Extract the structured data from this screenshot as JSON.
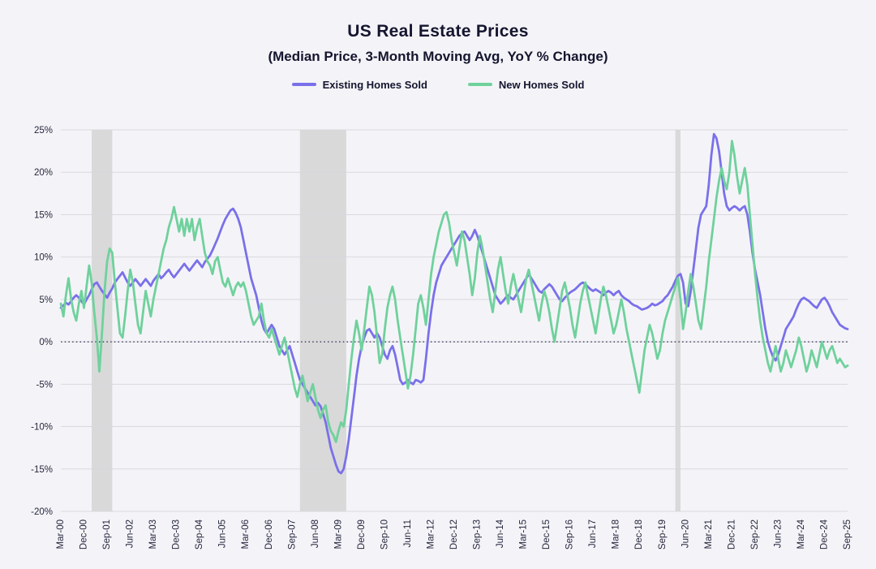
{
  "title": "US Real Estate Prices",
  "subtitle": "(Median Price, 3-Month Moving Avg, YoY % Change)",
  "legend": [
    {
      "label": "Existing Homes Sold",
      "color": "#7a70ea"
    },
    {
      "label": "New Homes Sold",
      "color": "#6fd19c"
    }
  ],
  "colors": {
    "background": "#f4f4f8",
    "grid": "#d8d8de",
    "text": "#26263e",
    "zero_line": "#23234a",
    "recession_band": "#d9d9d9"
  },
  "chart_data": {
    "type": "line",
    "title": "US Real Estate Prices",
    "subtitle": "(Median Price, 3-Month Moving Avg, YoY % Change)",
    "x_monthly_from": "Mar-00",
    "x_monthly_to": "Sep-25",
    "x_tick_interval_months": 9,
    "x_tick_labels": [
      "Mar-00",
      "Dec-00",
      "Sep-01",
      "Jun-02",
      "Mar-03",
      "Dec-03",
      "Sep-04",
      "Jun-05",
      "Mar-06",
      "Dec-06",
      "Sep-07",
      "Jun-08",
      "Mar-09",
      "Dec-09",
      "Sep-10",
      "Jun-11",
      "Mar-12",
      "Dec-12",
      "Sep-13",
      "Jun-14",
      "Mar-15",
      "Dec-15",
      "Sep-16",
      "Jun-17",
      "Mar-18",
      "Dec-18",
      "Sep-19",
      "Jun-20",
      "Mar-21",
      "Dec-21",
      "Sep-22",
      "Jun-23",
      "Mar-24",
      "Dec-24",
      "Sep-25"
    ],
    "ylim": [
      -20,
      25
    ],
    "y_ticks": [
      25,
      20,
      15,
      10,
      5,
      0,
      -5,
      -10,
      -15,
      -20
    ],
    "y_tick_format": "percent",
    "grid": "horizontal",
    "zero_line_style": "dotted",
    "legend_position": "top",
    "recession_bands": [
      {
        "from": "Mar-01",
        "to": "Nov-01"
      },
      {
        "from": "Dec-07",
        "to": "Jun-09"
      },
      {
        "from": "Feb-20",
        "to": "Apr-20"
      }
    ],
    "series": [
      {
        "name": "Existing Homes Sold",
        "color": "#7a70ea",
        "values": [
          4.0,
          4.3,
          4.6,
          4.4,
          4.8,
          5.2,
          5.5,
          5.2,
          4.8,
          4.4,
          5.0,
          5.5,
          6.2,
          6.8,
          7.0,
          6.5,
          6.0,
          5.6,
          5.2,
          5.8,
          6.3,
          7.0,
          7.4,
          7.8,
          8.2,
          7.6,
          7.0,
          6.6,
          7.0,
          7.4,
          7.0,
          6.6,
          7.0,
          7.4,
          7.0,
          6.6,
          7.2,
          7.6,
          8.0,
          7.5,
          7.8,
          8.2,
          8.5,
          8.0,
          7.6,
          8.0,
          8.4,
          8.8,
          9.2,
          8.8,
          8.4,
          8.8,
          9.2,
          9.6,
          9.2,
          8.8,
          9.4,
          9.8,
          10.2,
          10.8,
          11.5,
          12.2,
          13.0,
          13.8,
          14.5,
          15.0,
          15.5,
          15.7,
          15.2,
          14.5,
          13.5,
          12.0,
          10.5,
          9.0,
          7.5,
          6.5,
          5.5,
          4.0,
          2.5,
          1.5,
          1.0,
          1.5,
          2.0,
          1.5,
          0.5,
          -0.5,
          -1.0,
          -1.5,
          -1.0,
          -0.5,
          -1.5,
          -2.5,
          -3.5,
          -4.5,
          -5.0,
          -5.5,
          -6.0,
          -6.5,
          -7.0,
          -7.5,
          -7.2,
          -7.6,
          -8.5,
          -9.5,
          -11.0,
          -12.5,
          -13.5,
          -14.5,
          -15.3,
          -15.5,
          -15.0,
          -13.5,
          -11.5,
          -9.0,
          -6.5,
          -4.0,
          -2.0,
          -0.5,
          0.5,
          1.3,
          1.5,
          1.0,
          0.5,
          1.0,
          0.5,
          -0.5,
          -1.5,
          -2.0,
          -1.0,
          -0.5,
          -1.5,
          -3.0,
          -4.5,
          -5.0,
          -4.8,
          -4.5,
          -4.8,
          -5.0,
          -4.5,
          -4.6,
          -4.8,
          -4.5,
          -2.0,
          1.0,
          3.5,
          5.5,
          7.0,
          8.0,
          9.0,
          9.5,
          10.0,
          10.5,
          11.0,
          11.5,
          12.0,
          12.5,
          12.8,
          13.0,
          12.5,
          12.0,
          12.5,
          13.2,
          12.5,
          11.5,
          10.5,
          9.5,
          8.5,
          7.5,
          6.5,
          5.5,
          5.0,
          4.5,
          4.8,
          5.2,
          5.5,
          5.2,
          5.0,
          5.5,
          6.0,
          6.5,
          7.0,
          7.5,
          8.0,
          7.5,
          7.0,
          6.5,
          6.0,
          5.8,
          6.2,
          6.5,
          6.8,
          6.5,
          6.0,
          5.5,
          5.0,
          4.8,
          5.2,
          5.5,
          5.8,
          6.0,
          6.2,
          6.5,
          6.8,
          7.0,
          6.8,
          6.5,
          6.2,
          6.0,
          6.2,
          6.0,
          5.8,
          5.5,
          5.8,
          6.0,
          5.8,
          5.5,
          5.8,
          6.0,
          5.5,
          5.2,
          5.0,
          4.8,
          4.5,
          4.3,
          4.2,
          4.0,
          3.8,
          3.9,
          4.0,
          4.2,
          4.5,
          4.3,
          4.4,
          4.6,
          4.8,
          5.2,
          5.5,
          6.0,
          6.5,
          7.2,
          7.8,
          8.0,
          7.0,
          4.5,
          4.2,
          6.0,
          8.5,
          11.0,
          13.5,
          15.0,
          15.5,
          16.0,
          18.5,
          22.0,
          24.5,
          24.0,
          22.5,
          20.0,
          17.5,
          16.0,
          15.5,
          15.8,
          16.0,
          15.8,
          15.5,
          15.8,
          16.0,
          15.0,
          13.0,
          10.5,
          8.5,
          7.0,
          5.5,
          3.5,
          1.5,
          0.0,
          -1.0,
          -1.8,
          -2.2,
          -1.5,
          -0.5,
          0.5,
          1.5,
          2.0,
          2.5,
          3.0,
          3.8,
          4.5,
          5.0,
          5.2,
          5.0,
          4.8,
          4.5,
          4.2,
          4.0,
          4.5,
          5.0,
          5.2,
          4.8,
          4.2,
          3.5,
          3.0,
          2.5,
          2.0,
          1.8,
          1.6,
          1.5
        ]
      },
      {
        "name": "New Homes Sold",
        "color": "#6fd19c",
        "values": [
          4.5,
          3.0,
          5.5,
          7.5,
          5.0,
          3.5,
          2.5,
          4.5,
          6.0,
          4.0,
          6.5,
          9.0,
          7.0,
          3.5,
          0.5,
          -3.5,
          1.0,
          6.0,
          9.5,
          11.0,
          10.5,
          7.0,
          4.0,
          1.0,
          0.5,
          3.0,
          6.0,
          8.5,
          7.0,
          4.5,
          2.0,
          1.0,
          3.5,
          6.0,
          4.5,
          3.0,
          5.0,
          6.5,
          8.0,
          9.5,
          11.0,
          12.0,
          13.5,
          14.5,
          15.9,
          14.5,
          13.0,
          14.5,
          12.5,
          14.5,
          13.0,
          14.5,
          12.0,
          13.5,
          14.5,
          12.5,
          10.5,
          9.5,
          9.0,
          8.0,
          9.5,
          10.0,
          8.5,
          7.0,
          6.5,
          7.5,
          6.5,
          5.5,
          6.5,
          7.0,
          6.5,
          7.0,
          6.0,
          4.5,
          3.0,
          2.0,
          2.5,
          3.0,
          4.5,
          2.5,
          1.0,
          0.5,
          1.5,
          0.5,
          -0.5,
          -1.5,
          -0.5,
          0.5,
          -1.0,
          -2.5,
          -4.0,
          -5.5,
          -6.5,
          -5.0,
          -4.0,
          -5.5,
          -7.0,
          -6.0,
          -5.0,
          -6.5,
          -8.0,
          -9.0,
          -8.0,
          -7.5,
          -9.5,
          -10.5,
          -11.0,
          -11.8,
          -10.5,
          -9.5,
          -10.0,
          -8.0,
          -5.0,
          -2.0,
          0.5,
          2.5,
          1.0,
          -1.0,
          1.5,
          4.0,
          6.5,
          5.5,
          3.5,
          0.5,
          -2.5,
          -1.5,
          1.5,
          4.0,
          5.5,
          6.5,
          5.0,
          2.5,
          0.5,
          -1.5,
          -3.5,
          -5.5,
          -4.0,
          -1.5,
          1.5,
          4.5,
          5.5,
          4.0,
          2.0,
          5.0,
          8.0,
          10.0,
          11.5,
          13.0,
          14.0,
          15.0,
          15.3,
          14.0,
          12.0,
          10.5,
          9.0,
          11.0,
          13.0,
          12.0,
          10.0,
          8.0,
          5.5,
          7.5,
          10.5,
          12.5,
          11.0,
          9.0,
          7.0,
          5.0,
          3.5,
          6.0,
          8.5,
          10.0,
          8.0,
          6.0,
          4.5,
          6.5,
          8.0,
          6.5,
          5.0,
          3.5,
          5.5,
          7.5,
          8.5,
          7.0,
          5.5,
          4.0,
          2.5,
          4.5,
          6.0,
          5.0,
          3.5,
          1.5,
          0.0,
          2.0,
          4.0,
          6.0,
          7.0,
          5.5,
          4.0,
          2.0,
          0.5,
          2.5,
          4.5,
          6.0,
          7.0,
          5.5,
          4.0,
          2.5,
          1.0,
          3.0,
          5.0,
          6.5,
          5.5,
          4.0,
          2.5,
          1.0,
          2.0,
          3.5,
          5.0,
          3.5,
          1.5,
          0.0,
          -1.5,
          -3.0,
          -4.5,
          -6.0,
          -3.5,
          -1.0,
          0.5,
          2.0,
          1.0,
          -0.5,
          -2.0,
          -1.0,
          1.0,
          2.5,
          3.5,
          4.5,
          5.5,
          6.5,
          7.5,
          5.0,
          1.5,
          3.5,
          6.0,
          8.0,
          6.5,
          4.5,
          2.5,
          1.5,
          4.0,
          6.5,
          9.5,
          12.0,
          14.5,
          17.0,
          19.0,
          20.5,
          19.0,
          18.0,
          20.0,
          23.7,
          22.0,
          19.5,
          17.5,
          19.0,
          20.5,
          18.5,
          15.0,
          11.5,
          8.0,
          5.0,
          2.5,
          0.5,
          -1.0,
          -2.5,
          -3.5,
          -2.0,
          -0.5,
          -2.0,
          -3.5,
          -2.5,
          -1.0,
          -2.0,
          -3.0,
          -2.0,
          -1.0,
          0.5,
          -0.5,
          -2.0,
          -3.5,
          -2.5,
          -1.0,
          -2.0,
          -3.0,
          -1.5,
          0.0,
          -1.0,
          -2.0,
          -1.0,
          -0.5,
          -1.5,
          -2.5,
          -2.0,
          -2.5,
          -3.0,
          -2.8
        ]
      }
    ]
  }
}
